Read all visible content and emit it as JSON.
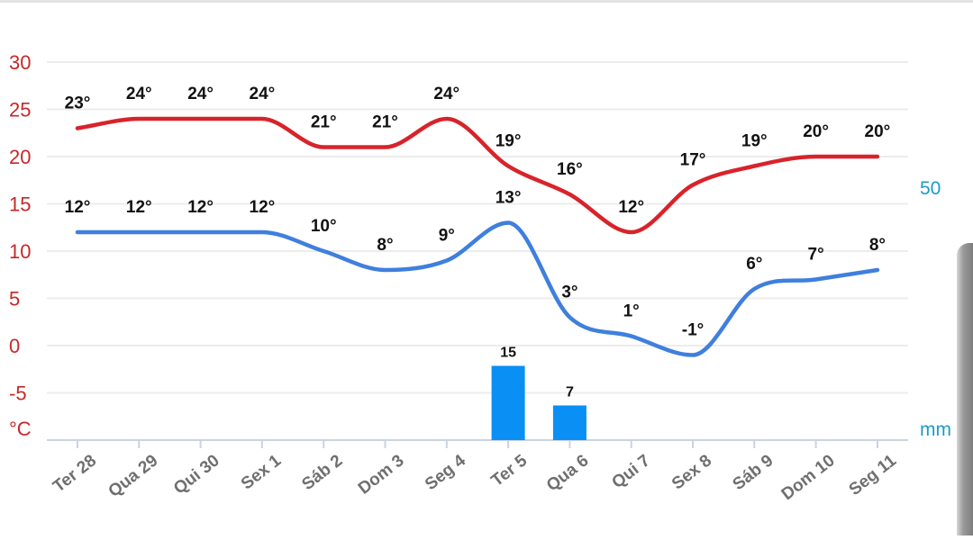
{
  "chart_data": {
    "type": "line",
    "categories": [
      "Ter 28",
      "Qua 29",
      "Qui 30",
      "Sex 1",
      "Sáb 2",
      "Dom 3",
      "Seg 4",
      "Ter 5",
      "Qua 6",
      "Qui 7",
      "Sex 8",
      "Sáb 9",
      "Dom 10",
      "Seg 11"
    ],
    "series": [
      {
        "key": "max",
        "values": [
          23,
          24,
          24,
          24,
          21,
          21,
          24,
          19,
          16,
          12,
          17,
          19,
          20,
          20
        ],
        "labels": [
          "23°",
          "24°",
          "24°",
          "24°",
          "21°",
          "21°",
          "24°",
          "19°",
          "16°",
          "12°",
          "17°",
          "19°",
          "20°",
          "20°"
        ]
      },
      {
        "key": "min",
        "values": [
          12,
          12,
          12,
          12,
          10,
          8,
          9,
          13,
          3,
          1,
          -1,
          6,
          7,
          8
        ],
        "labels": [
          "12°",
          "12°",
          "12°",
          "12°",
          "10°",
          "8°",
          "9°",
          "13°",
          "3°",
          "1°",
          "-1°",
          "6°",
          "7°",
          "8°"
        ]
      },
      {
        "key": "precip",
        "type": "bar",
        "values": [
          0,
          0,
          0,
          0,
          0,
          0,
          0,
          15,
          7,
          0,
          0,
          0,
          0,
          0
        ],
        "labels": [
          "",
          "",
          "",
          "",
          "",
          "",
          "",
          "15",
          "7",
          "",
          "",
          "",
          "",
          ""
        ]
      }
    ],
    "y_left": {
      "unit": "°C",
      "ticks": [
        "30",
        "25",
        "20",
        "15",
        "10",
        "5",
        "0",
        "-5"
      ],
      "ylim": [
        -10,
        30
      ]
    },
    "y_right": {
      "unit": "mm",
      "ticks": [
        "50"
      ]
    },
    "grid": true,
    "colors": {
      "max": "#d8232a",
      "min": "#3f7fde",
      "precip": "#0a8ff5",
      "left_axis_text": "#c62828",
      "right_axis_text": "#1b9cc9"
    }
  }
}
